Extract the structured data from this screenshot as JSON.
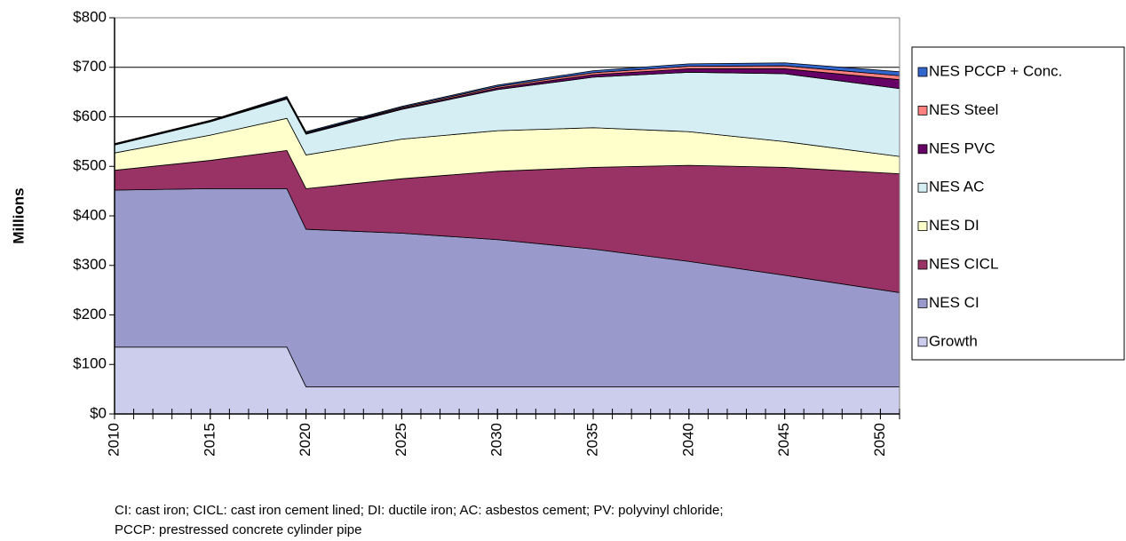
{
  "chart_data": {
    "type": "stacked_area",
    "y_label": "Millions",
    "x": [
      2010,
      2015,
      2019,
      2020,
      2025,
      2030,
      2035,
      2040,
      2045,
      2051
    ],
    "series": [
      {
        "name": "Growth",
        "color": "#ccccec",
        "values": [
          135,
          135,
          135,
          55,
          55,
          55,
          55,
          55,
          55,
          55
        ]
      },
      {
        "name": "NES CI",
        "color": "#9999cc",
        "values": [
          317,
          320,
          320,
          318,
          310,
          297,
          278,
          253,
          225,
          190
        ]
      },
      {
        "name": "NES CICL",
        "color": "#993366",
        "values": [
          40,
          57,
          77,
          82,
          110,
          138,
          165,
          194,
          218,
          240
        ]
      },
      {
        "name": "NES DI",
        "color": "#ffffcc",
        "values": [
          35,
          51,
          65,
          68,
          80,
          82,
          80,
          68,
          52,
          35
        ]
      },
      {
        "name": "NES AC",
        "color": "#d4eef4",
        "values": [
          16,
          27,
          39,
          42,
          60,
          83,
          102,
          120,
          137,
          137
        ]
      },
      {
        "name": "NES PVC",
        "color": "#660066",
        "values": [
          1,
          1,
          2,
          2,
          2,
          3,
          5,
          7,
          10,
          18
        ]
      },
      {
        "name": "NES Steel",
        "color": "#ff8080",
        "values": [
          1,
          1,
          1,
          1,
          2,
          3,
          4,
          5,
          6,
          8
        ]
      },
      {
        "name": "NES PCCP + Conc.",
        "color": "#3366cc",
        "values": [
          1,
          1,
          2,
          2,
          2,
          3,
          4,
          5,
          6,
          8
        ]
      }
    ],
    "xlim": [
      2010,
      2051
    ],
    "xticks": [
      2010,
      2015,
      2020,
      2025,
      2030,
      2035,
      2040,
      2045,
      2050
    ],
    "ylim": [
      0,
      800
    ],
    "yticks": [
      {
        "value": 0,
        "label": "$0"
      },
      {
        "value": 100,
        "label": "$100"
      },
      {
        "value": 200,
        "label": "$200"
      },
      {
        "value": 300,
        "label": "$300"
      },
      {
        "value": 400,
        "label": "$400"
      },
      {
        "value": 500,
        "label": "$500"
      },
      {
        "value": 600,
        "label": "$600"
      },
      {
        "value": 700,
        "label": "$700"
      },
      {
        "value": 800,
        "label": "$800"
      }
    ],
    "grid": true,
    "legend": "right",
    "notes": [
      "CI: cast iron; CICL: cast iron cement lined; DI: ductile iron; AC: asbestos cement; PV: polyvinyl chloride;",
      "PCCP: prestressed concrete cylinder pipe"
    ]
  }
}
